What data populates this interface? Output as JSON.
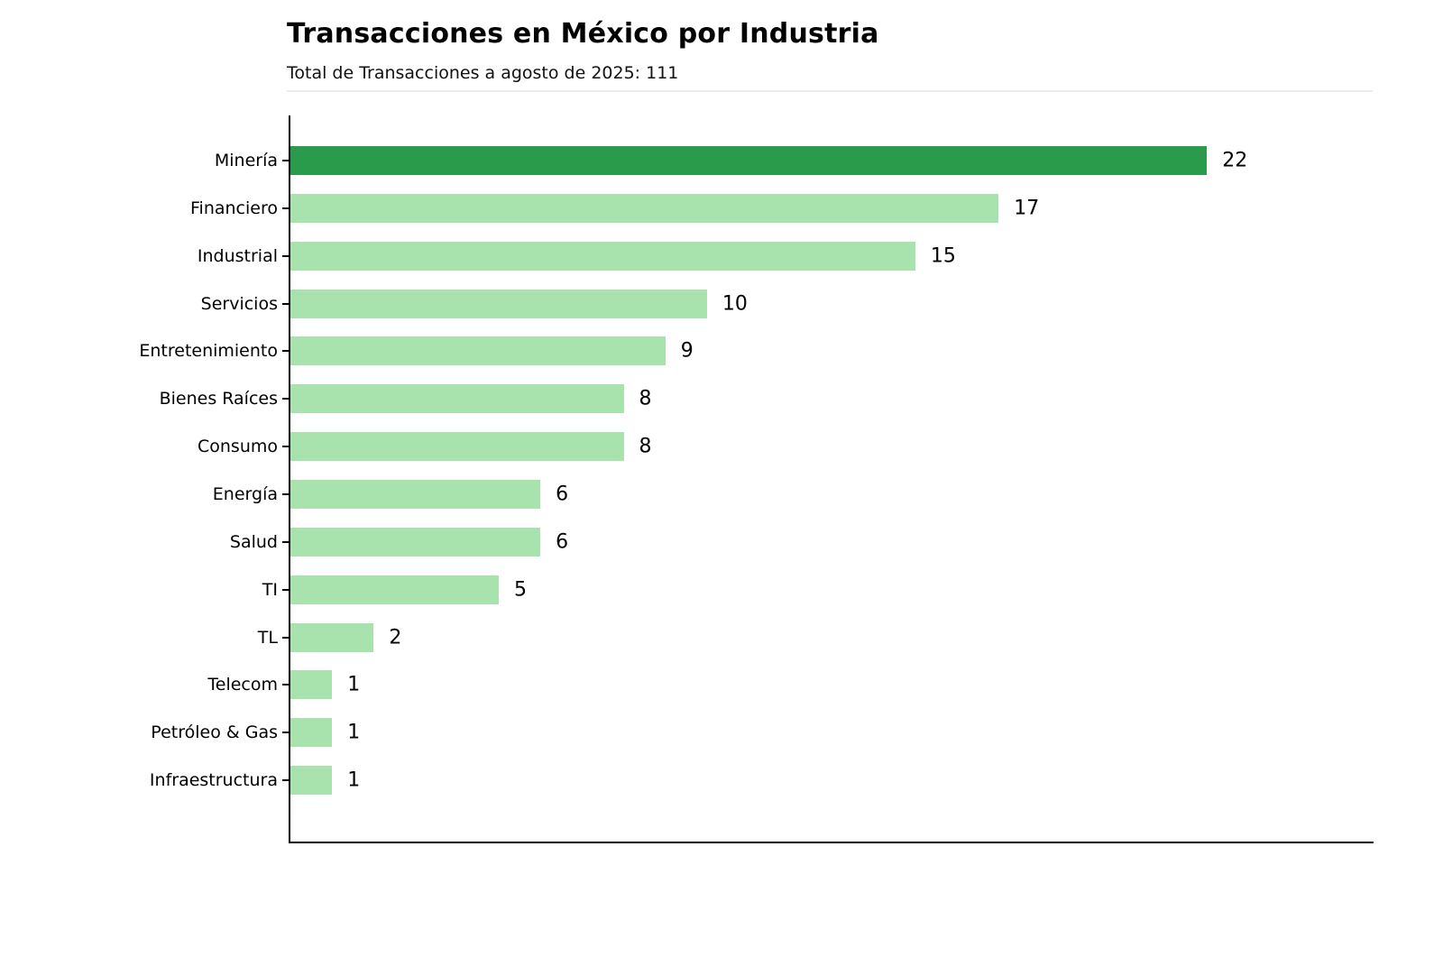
{
  "header": {
    "title": "Transacciones en México por Industria",
    "subtitle": "Total de Transacciones a agosto de 2025: 111"
  },
  "chart_data": {
    "type": "bar",
    "orientation": "horizontal",
    "title": "Transacciones en México por Industria",
    "subtitle": "Total de Transacciones a agosto de 2025: 111",
    "total_label_value": 111,
    "categories": [
      "Minería",
      "Financiero",
      "Industrial",
      "Servicios",
      "Entretenimiento",
      "Bienes Raíces",
      "Consumo",
      "Energía",
      "Salud",
      "TI",
      "TL",
      "Telecom",
      "Petróleo & Gas",
      "Infraestructura"
    ],
    "values": [
      22,
      17,
      15,
      10,
      9,
      8,
      8,
      6,
      6,
      5,
      2,
      1,
      1,
      1
    ],
    "xlabel": "",
    "ylabel": "",
    "xlim": [
      0,
      26
    ],
    "grid": false,
    "legend": null,
    "value_labels": true,
    "highlight_category": "Minería",
    "colors": {
      "highlight_bar": "#2a9b4a",
      "default_bar": "#a8e2ad",
      "axis": "#000000",
      "text": "#000000",
      "separator": "#e9edf0",
      "background": "#ffffff"
    }
  }
}
